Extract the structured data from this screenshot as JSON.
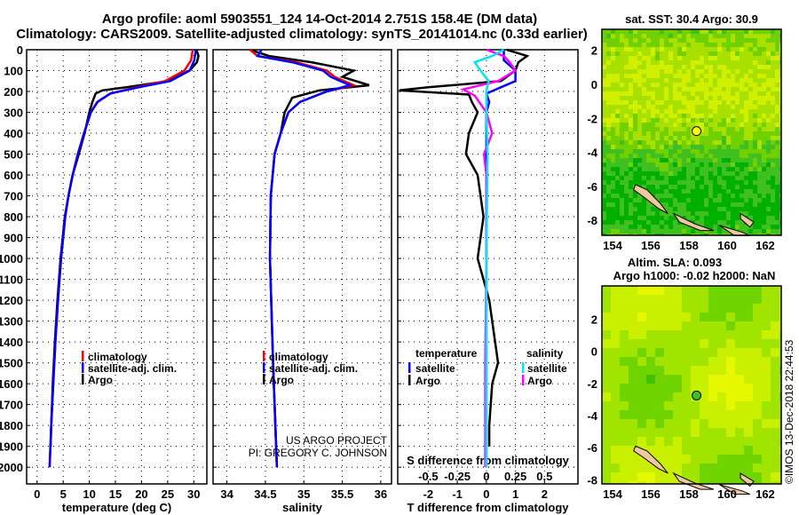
{
  "title_line1": "Argo profile: aoml 5903551_124 14-Oct-2014 2.751S 158.4E (DM data)",
  "title_line2": "Climatology: CARS2009. Satellite-adjusted climatology: synTS_20141014.nc (0.33d earlier)",
  "credit_line1": "US ARGO PROJECT",
  "credit_line2": "PI: GREGORY C. JOHNSON",
  "imos_stamp": "©IMOS 13-Dec-2018 22:44:53",
  "colors": {
    "climatology": "#ff0000",
    "satellite": "#0000ff",
    "argo": "#000000",
    "sal_satellite": "#00e5ee",
    "sal_argo": "#ff00ff"
  },
  "chart_data": [
    {
      "type": "line",
      "xlabel": "temperature (deg C)",
      "ylabel": "",
      "xlim": [
        -2,
        32.5
      ],
      "ylim": [
        2080,
        0
      ],
      "xticks": [
        0,
        5,
        10,
        15,
        20,
        25,
        30
      ],
      "yticks": [
        0,
        100,
        200,
        300,
        400,
        500,
        600,
        700,
        800,
        900,
        1000,
        1100,
        1200,
        1300,
        1400,
        1500,
        1600,
        1700,
        1800,
        1900,
        2000
      ],
      "legend": [
        "climatology",
        "satellite-adj. clim.",
        "Argo"
      ],
      "legend_placement": "lower-right",
      "series": [
        {
          "name": "climatology",
          "depth": [
            0,
            50,
            100,
            150,
            180,
            210,
            250,
            300,
            400,
            500,
            600,
            700,
            800,
            1000,
            1200,
            1400,
            1600,
            1800,
            2000
          ],
          "values": [
            29.8,
            29.5,
            28.2,
            24.5,
            19,
            14,
            11.5,
            10.3,
            9,
            7.8,
            6.8,
            6,
            5.4,
            4.6,
            4,
            3.5,
            3.1,
            2.7,
            2.4
          ]
        },
        {
          "name": "satellite-adj. clim.",
          "depth": [
            0,
            50,
            100,
            150,
            180,
            210,
            250,
            300,
            400,
            500,
            600,
            700,
            800,
            1000,
            1200,
            1400,
            1600,
            1800,
            2000
          ],
          "values": [
            30.4,
            30.1,
            29.2,
            25.5,
            19.5,
            14,
            11.6,
            10.3,
            9,
            7.8,
            6.8,
            6,
            5.4,
            4.6,
            4,
            3.5,
            3.1,
            2.7,
            2.4
          ]
        },
        {
          "name": "Argo",
          "depth": [
            0,
            30,
            60,
            100,
            150,
            180,
            195,
            210,
            250,
            300,
            400,
            500,
            600,
            700,
            800,
            1000,
            1200,
            1400,
            1600,
            1800,
            1900
          ],
          "values": [
            30.5,
            30.9,
            30.6,
            29.2,
            25,
            17,
            12.5,
            11.2,
            10.6,
            10,
            9.1,
            8,
            6.8,
            6,
            5.3,
            4.5,
            3.9,
            3.4,
            3,
            2.7,
            2.6
          ]
        }
      ]
    },
    {
      "type": "line",
      "xlabel": "salinity",
      "xlim": [
        33.82,
        36.14
      ],
      "ylim": [
        2080,
        0
      ],
      "xticks": [
        34,
        34.5,
        35,
        35.5,
        36
      ],
      "legend": [
        "climatology",
        "satellite-adj. clim.",
        "Argo"
      ],
      "legend_placement": "lower-right",
      "series": [
        {
          "name": "climatology",
          "depth": [
            0,
            30,
            60,
            100,
            130,
            170,
            200,
            250,
            300,
            400,
            500,
            700,
            1000,
            1500,
            2000
          ],
          "values": [
            34.3,
            34.4,
            34.9,
            35.3,
            35.4,
            35.65,
            35.3,
            34.95,
            34.8,
            34.7,
            34.62,
            34.57,
            34.56,
            34.6,
            34.65
          ]
        },
        {
          "name": "satellite-adj. clim.",
          "depth": [
            0,
            30,
            60,
            100,
            130,
            170,
            200,
            250,
            300,
            400,
            500,
            700,
            1000,
            1500,
            2000
          ],
          "values": [
            34.45,
            34.4,
            34.85,
            35.25,
            35.35,
            35.6,
            35.3,
            34.95,
            34.8,
            34.7,
            34.62,
            34.57,
            34.56,
            34.6,
            34.65
          ]
        },
        {
          "name": "Argo",
          "depth": [
            0,
            30,
            60,
            100,
            130,
            170,
            195,
            230,
            300,
            400,
            500,
            700,
            1000,
            1500,
            2000
          ],
          "values": [
            34.3,
            34.55,
            35.1,
            35.65,
            35.5,
            35.85,
            35.2,
            34.85,
            34.75,
            34.7,
            34.62,
            34.57,
            34.56,
            34.6,
            34.65
          ]
        }
      ]
    },
    {
      "type": "line",
      "xlabel": "T difference from climatology",
      "xlabel2": "S difference from climatology",
      "xlim": [
        -3.05,
        3.15
      ],
      "xticks": [
        -2,
        -1,
        0,
        1,
        2
      ],
      "xticks2": [
        -0.5,
        -0.25,
        0,
        0.25,
        0.5
      ],
      "ylim": [
        2080,
        0
      ],
      "legend_temperature_title": "temperature",
      "legend_salinity_title": "salinity",
      "legend": [
        "satellite",
        "Argo"
      ],
      "series": [
        {
          "name": "temperature satellite",
          "depth": [
            0,
            50,
            100,
            150,
            180,
            210,
            250,
            300,
            500,
            1000,
            2000
          ],
          "values": [
            0.6,
            0.6,
            1,
            1,
            0.5,
            0,
            0.1,
            0,
            0,
            0,
            0
          ]
        },
        {
          "name": "temperature Argo",
          "depth": [
            0,
            30,
            60,
            100,
            150,
            180,
            195,
            215,
            250,
            300,
            400,
            500,
            600,
            800,
            1000,
            1200,
            1400,
            1500,
            1600,
            1800,
            1900
          ],
          "values": [
            0.7,
            1.4,
            1.1,
            1,
            0.5,
            -2,
            -3,
            -0.6,
            -0.5,
            -0.3,
            -0.6,
            -0.7,
            -0.3,
            -0.1,
            -0.3,
            0.1,
            0.3,
            0.4,
            0.2,
            0.1,
            0.1
          ]
        },
        {
          "name": "salinity satellite",
          "depth": [
            0,
            30,
            60,
            100,
            150,
            200,
            300,
            500,
            1000,
            2000
          ],
          "values": [
            0.15,
            0.05,
            -0.1,
            -0.05,
            0.02,
            0,
            0,
            0.01,
            0,
            0
          ]
        },
        {
          "name": "salinity Argo",
          "depth": [
            0,
            30,
            60,
            100,
            150,
            190,
            220,
            300,
            400,
            500,
            600,
            1000,
            1500,
            2000
          ],
          "values": [
            0,
            0.15,
            0.2,
            0.25,
            0.1,
            -0.2,
            -0.1,
            0,
            0.05,
            -0.02,
            0,
            0,
            -0.01,
            -0.01
          ]
        }
      ]
    }
  ],
  "maps": [
    {
      "title": "sat. SST: 30.4 Argo: 30.9",
      "lon_ticks": [
        154,
        156,
        158,
        160,
        162
      ],
      "lat_ticks": [
        2,
        0,
        -2,
        -4,
        -6,
        -8
      ],
      "lon_range": [
        153.44,
        162.84
      ],
      "lat_range": [
        -8.88,
        3.24
      ],
      "float_lon": 158.4,
      "float_lat": -2.75,
      "palette": [
        "#00b000",
        "#40c020",
        "#70d000",
        "#a8e000",
        "#d0f000"
      ]
    },
    {
      "title": "Altim. SLA: 0.093",
      "title2": "Argo h1000: -0.02 h2000: NaN",
      "lon_ticks": [
        154,
        156,
        158,
        160,
        162
      ],
      "lat_ticks": [
        2,
        0,
        -2,
        -4,
        -6,
        -8
      ],
      "lon_range": [
        153.44,
        162.84
      ],
      "lat_range": [
        -8.26,
        4.08
      ],
      "float_lon": 158.4,
      "float_lat": -2.75,
      "palette": [
        "#40c000",
        "#70d400",
        "#a0e400",
        "#c8f000",
        "#e6f800"
      ]
    }
  ]
}
